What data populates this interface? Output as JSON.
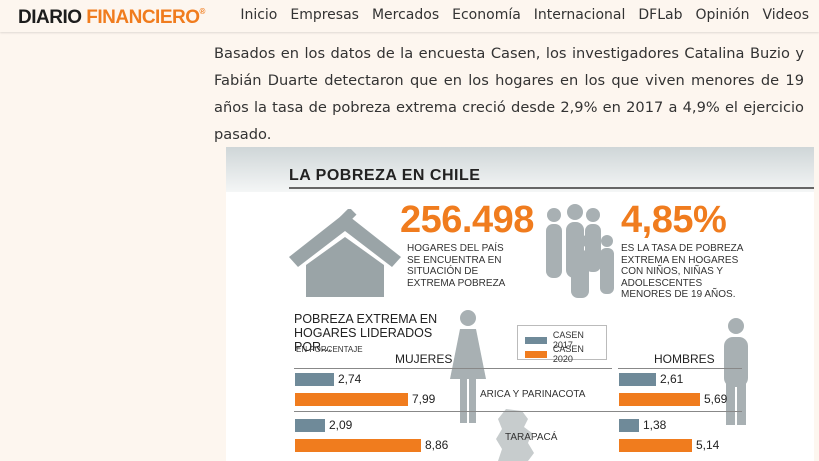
{
  "header": {
    "logo_word1": "DIARIO",
    "logo_word2": "FINANCIERO",
    "logo_reg": "®",
    "nav": [
      "Inicio",
      "Empresas",
      "Mercados",
      "Economía",
      "Internacional",
      "DFLab",
      "Opinión",
      "Videos"
    ]
  },
  "article": {
    "paragraph": "Basados en los datos de la encuesta Casen, los investigadores Catalina Buzio y Fabián Duarte detectaron que en los hogares en los que viven menores de 19 años la tasa de pobreza extrema creció desde 2,9% en 2017 a 4,9% el ejercicio pasado."
  },
  "infographic": {
    "title": "LA POBREZA EN CHILE",
    "stat1": {
      "number": "256.498",
      "caption": "HOGARES DEL PAÍS SE ENCUENTRA EN SITUACIÓN DE EXTREMA POBREZA"
    },
    "stat2": {
      "number": "4,85%",
      "caption": "ES LA TASA DE POBREZA EXTREMA EN HOGARES CON NIÑOS, NIÑAS Y ADOLESCENTES MENORES DE 19 AÑOS."
    },
    "section_title": "POBREZA EXTREMA EN HOGARES LIDERADOS POR...",
    "section_note": "EN PORCENTAJE",
    "legend": [
      {
        "label": "CASEN 2017",
        "color": "#6f8a99"
      },
      {
        "label": "CASEN 2020",
        "color": "#f07c1e"
      }
    ],
    "group_left": "MUJERES",
    "group_right": "HOMBRES",
    "regions": [
      "ARICA Y PARINACOTA",
      "TARAPACÁ"
    ],
    "icons": [
      "house-icon",
      "family-icon",
      "woman-icon",
      "man-icon",
      "chile-map-icon"
    ]
  },
  "chart_data": {
    "type": "bar",
    "categories": [
      "ARICA Y PARINACOTA",
      "TARAPACÁ"
    ],
    "series": [
      {
        "name": "CASEN 2017",
        "group": "MUJERES",
        "values": [
          2.74,
          2.09
        ],
        "labels": [
          "2,74",
          "2,09"
        ]
      },
      {
        "name": "CASEN 2020",
        "group": "MUJERES",
        "values": [
          7.99,
          8.86
        ],
        "labels": [
          "7,99",
          "8,86"
        ]
      },
      {
        "name": "CASEN 2017",
        "group": "HOMBRES",
        "values": [
          2.61,
          1.38
        ],
        "labels": [
          "2,61",
          "1,38"
        ]
      },
      {
        "name": "CASEN 2020",
        "group": "HOMBRES",
        "values": [
          5.69,
          5.14
        ],
        "labels": [
          "5,69",
          "5,14"
        ]
      }
    ],
    "colors": {
      "CASEN 2017": "#6f8a99",
      "CASEN 2020": "#f07c1e"
    }
  }
}
